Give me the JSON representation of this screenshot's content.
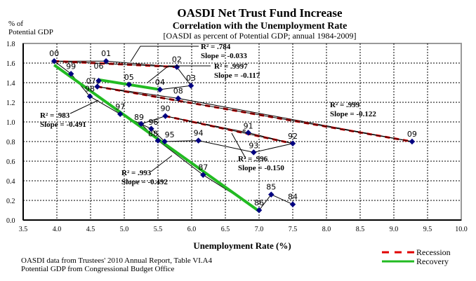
{
  "chart_data": {
    "type": "scatter",
    "title": "OASDI Net Trust Fund Increase",
    "subtitle": "Correlation with the Unemployment Rate",
    "subtitle2": "[OASDI as percent of Potential GDP;  annual 1984-2009]",
    "ylabel_line1": "% of",
    "ylabel_line2": "Potential GDP",
    "xlabel": "Unemployment Rate (%)",
    "xlim": [
      3.5,
      10.0
    ],
    "ylim": [
      0.0,
      1.8
    ],
    "x_ticks": [
      "3.5",
      "4.0",
      "4.5",
      "5.0",
      "5.5",
      "6.0",
      "6.5",
      "7.0",
      "7.5",
      "8.0",
      "8.5",
      "9.0",
      "9.5",
      "10.0"
    ],
    "y_ticks": [
      "0.0",
      "0.2",
      "0.4",
      "0.6",
      "0.8",
      "1.0",
      "1.2",
      "1.4",
      "1.6",
      "1.8"
    ],
    "grid": true,
    "points": [
      {
        "label": "84",
        "x": 7.5,
        "y": 0.16
      },
      {
        "label": "85",
        "x": 7.18,
        "y": 0.26
      },
      {
        "label": "86",
        "x": 7.0,
        "y": 0.1
      },
      {
        "label": "87",
        "x": 6.17,
        "y": 0.46
      },
      {
        "label": "88",
        "x": 5.5,
        "y": 0.81
      },
      {
        "label": "89",
        "x": 5.25,
        "y": 0.98
      },
      {
        "label": "90",
        "x": 5.61,
        "y": 1.06
      },
      {
        "label": "91",
        "x": 6.84,
        "y": 0.89
      },
      {
        "label": "92",
        "x": 7.5,
        "y": 0.78
      },
      {
        "label": "93",
        "x": 6.92,
        "y": 0.69
      },
      {
        "label": "94",
        "x": 6.1,
        "y": 0.81
      },
      {
        "label": "95",
        "x": 5.6,
        "y": 0.8
      },
      {
        "label": "96",
        "x": 5.4,
        "y": 0.93
      },
      {
        "label": "97",
        "x": 4.94,
        "y": 1.08
      },
      {
        "label": "98",
        "x": 4.49,
        "y": 1.26
      },
      {
        "label": "99",
        "x": 4.21,
        "y": 1.49
      },
      {
        "label": "00",
        "x": 3.96,
        "y": 1.62
      },
      {
        "label": "01",
        "x": 4.73,
        "y": 1.62
      },
      {
        "label": "02",
        "x": 5.78,
        "y": 1.56
      },
      {
        "label": "03",
        "x": 5.99,
        "y": 1.37
      },
      {
        "label": "04",
        "x": 5.53,
        "y": 1.33
      },
      {
        "label": "05",
        "x": 5.07,
        "y": 1.38
      },
      {
        "label": "06",
        "x": 4.62,
        "y": 1.42
      },
      {
        "label": "07",
        "x": 4.6,
        "y": 1.36
      },
      {
        "label": "08",
        "x": 5.8,
        "y": 1.24
      },
      {
        "label": "09",
        "x": 9.27,
        "y": 0.8
      }
    ],
    "trend_lines": [
      {
        "series": "Recession",
        "from": [
          3.96,
          1.62
        ],
        "to": [
          5.78,
          1.56
        ]
      },
      {
        "series": "Recession",
        "from": [
          4.6,
          1.36
        ],
        "to": [
          9.27,
          0.8
        ]
      },
      {
        "series": "Recession",
        "from": [
          5.61,
          1.06
        ],
        "to": [
          7.5,
          0.78
        ]
      },
      {
        "series": "Recovery",
        "from": [
          3.96,
          1.58
        ],
        "to": [
          7.0,
          0.09
        ]
      },
      {
        "series": "Recovery",
        "from": [
          4.62,
          1.43
        ],
        "to": [
          5.53,
          1.33
        ]
      }
    ],
    "annotations": [
      {
        "r2": "R² = .784",
        "slope": "Slope = -0.033"
      },
      {
        "r2": "R² = .9997",
        "slope": "Slope = -0.117"
      },
      {
        "r2": "R² = .999",
        "slope": "Slope = -0.122"
      },
      {
        "r2": "R² = .983",
        "slope": "Slope = -0.491"
      },
      {
        "r2": "R² = .996",
        "slope": "Slope = -0.150"
      },
      {
        "r2": "R² = .993",
        "slope": "Slope = -0.492"
      }
    ],
    "asterisk": "*",
    "legend": [
      {
        "name": "Recession",
        "color": "#e00000",
        "style": "dashed"
      },
      {
        "name": "Recovery",
        "color": "#22bb22",
        "style": "solid"
      }
    ],
    "legend_position": "bottom-right",
    "point_color": "#000080"
  },
  "footnotes": [
    "OASDI data from Trustees' 2010 Annual Report, Table VI.A4",
    "Potential GDP from Congressional Budget Office"
  ]
}
